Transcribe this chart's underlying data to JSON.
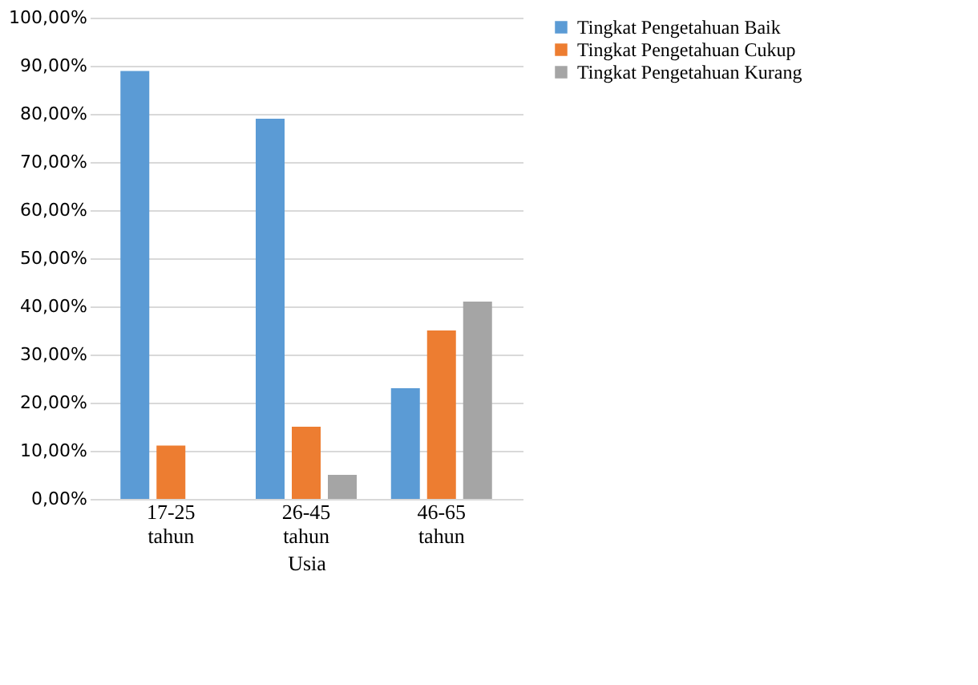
{
  "chart_data": {
    "type": "bar",
    "xlabel": "Usia",
    "categories": [
      "17-25 tahun",
      "26-45 tahun",
      "46-65 tahun"
    ],
    "series": [
      {
        "name": "Tingkat Pengetahuan Baik",
        "color": "#5b9bd5",
        "values": [
          88.9,
          79,
          23
        ]
      },
      {
        "name": "Tingkat Pengetahuan Cukup",
        "color": "#ed7d31",
        "values": [
          11.1,
          15,
          35
        ]
      },
      {
        "name": "Tingkat Pengetahuan Kurang",
        "color": "#a5a5a5",
        "values": [
          0,
          5,
          41
        ]
      }
    ],
    "ylim": [
      0,
      100
    ],
    "yticks": [
      {
        "value": 0,
        "label": "0,00%"
      },
      {
        "value": 10,
        "label": "10,00%"
      },
      {
        "value": 20,
        "label": "20,00%"
      },
      {
        "value": 30,
        "label": "30,00%"
      },
      {
        "value": 40,
        "label": "40,00%"
      },
      {
        "value": 50,
        "label": "50,00%"
      },
      {
        "value": 60,
        "label": "60,00%"
      },
      {
        "value": 70,
        "label": "70,00%"
      },
      {
        "value": 80,
        "label": "80,00%"
      },
      {
        "value": 90,
        "label": "90,00%"
      },
      {
        "value": 100,
        "label": "100,00%"
      }
    ],
    "grid": "y",
    "legend": "right"
  }
}
